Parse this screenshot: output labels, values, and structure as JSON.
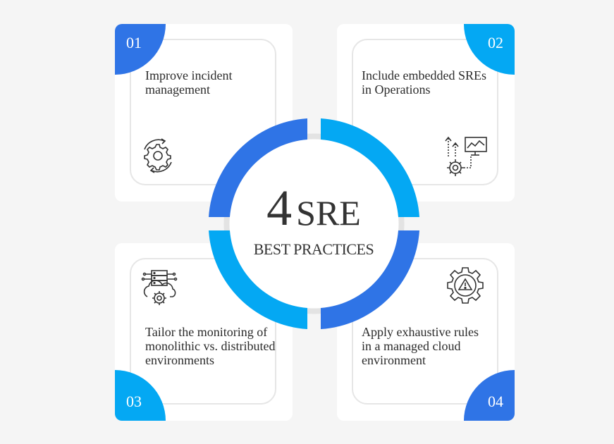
{
  "center": {
    "number": "4",
    "word": "SRE",
    "subtitle": "BEST PRACTICES"
  },
  "cards": [
    {
      "number": "01",
      "text": "Improve incident management",
      "icon": "gear-cycle-icon"
    },
    {
      "number": "02",
      "text": "Include embedded SREs in Operations",
      "icon": "monitor-gear-icon"
    },
    {
      "number": "03",
      "text": "Tailor the monitoring of monolithic vs. distributed environments",
      "icon": "server-cloud-gear-icon"
    },
    {
      "number": "04",
      "text": "Apply exhaustive rules in a managed cloud environment",
      "icon": "gear-warning-icon"
    }
  ],
  "colors": {
    "dark_blue": "#2f74e6",
    "light_blue": "#04a8f3",
    "card": "#ffffff",
    "background": "#f5f5f5"
  }
}
